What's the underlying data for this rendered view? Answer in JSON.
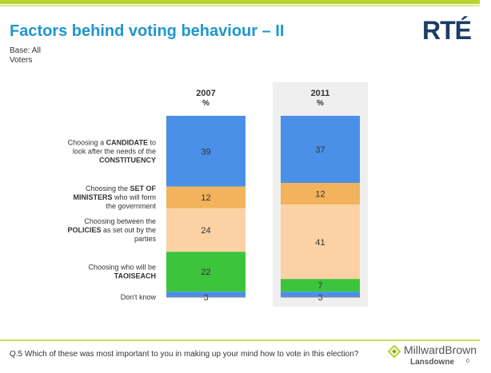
{
  "header": {
    "title": "Factors behind voting behaviour – II",
    "logo_text": "RTÉ",
    "base_line1": "Base: All",
    "base_line2": "Voters"
  },
  "footer": {
    "question": "Q.5  Which of these was most important to you in making up your mind how to vote in this election?",
    "brand_name": "MillwardBrown",
    "brand_sub": "Lansdowne",
    "page_number": "0"
  },
  "chart_data": {
    "type": "bar",
    "stacked": true,
    "unit": "%",
    "categories": [
      "2007",
      "2011"
    ],
    "category_units": [
      "%",
      "%"
    ],
    "series": [
      {
        "label_lines": [
          [
            {
              "t": "Choosing a ",
              "b": false
            },
            {
              "t": "CANDIDATE",
              "b": true
            },
            {
              "t": " to",
              "b": false
            }
          ],
          [
            {
              "t": "look after the needs of the",
              "b": false
            }
          ],
          [
            {
              "t": "CONSTITUENCY",
              "b": true
            }
          ]
        ],
        "values": [
          39,
          37
        ],
        "color": "#4a90e8"
      },
      {
        "label_lines": [
          [
            {
              "t": "Choosing the ",
              "b": false
            },
            {
              "t": "SET OF",
              "b": true
            }
          ],
          [
            {
              "t": "MINISTERS",
              "b": true
            },
            {
              "t": " who will form",
              "b": false
            }
          ],
          [
            {
              "t": "the government",
              "b": false
            }
          ]
        ],
        "values": [
          12,
          12
        ],
        "color": "#f2b35c"
      },
      {
        "label_lines": [
          [
            {
              "t": "Choosing between the",
              "b": false
            }
          ],
          [
            {
              "t": "POLICIES",
              "b": true
            },
            {
              "t": " as set out by the",
              "b": false
            }
          ],
          [
            {
              "t": "parties",
              "b": false
            }
          ]
        ],
        "values": [
          24,
          41
        ],
        "color": "#fcd2a4"
      },
      {
        "label_lines": [
          [
            {
              "t": "Choosing who will be",
              "b": false
            }
          ],
          [
            {
              "t": "TAOISEACH",
              "b": true
            }
          ]
        ],
        "values": [
          22,
          7
        ],
        "color": "#3cc43c"
      },
      {
        "label_lines": [
          [
            {
              "t": "Don't know",
              "b": false
            }
          ]
        ],
        "values": [
          3,
          3
        ],
        "color": "#4a90e8"
      }
    ],
    "highlight_category": "2011"
  }
}
